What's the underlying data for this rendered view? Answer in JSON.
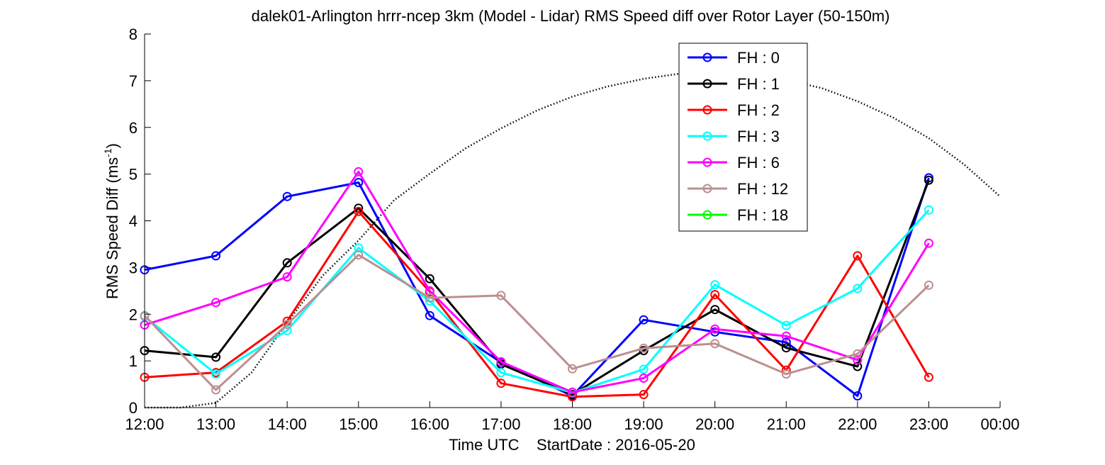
{
  "chart_data": {
    "type": "line",
    "title": "dalek01-Arlington hrrr-ncep 3km (Model - Lidar) RMS Speed diff over Rotor Layer (50-150m)",
    "xlabel": "Time UTC    StartDate : 2016-05-20",
    "ylabel_main": "RMS Speed Diff (ms",
    "ylabel_sup": "-1",
    "ylabel_close": ")",
    "ylim": [
      0,
      8
    ],
    "xlim": [
      0,
      12
    ],
    "grid": false,
    "legend_position": "top-right",
    "x_tick_labels": [
      "12:00",
      "13:00",
      "14:00",
      "15:00",
      "16:00",
      "17:00",
      "18:00",
      "19:00",
      "20:00",
      "21:00",
      "22:00",
      "23:00",
      "00:00"
    ],
    "y_tick_labels": [
      "0",
      "1",
      "2",
      "3",
      "4",
      "5",
      "6",
      "7",
      "8"
    ],
    "series": [
      {
        "name": "FH : 0",
        "color": "#0000ff",
        "values": [
          2.95,
          3.25,
          4.52,
          4.82,
          1.97,
          0.97,
          0.25,
          1.88,
          1.62,
          1.4,
          0.25,
          4.92
        ]
      },
      {
        "name": "FH : 1",
        "color": "#000000",
        "values": [
          1.22,
          1.08,
          3.1,
          4.27,
          2.76,
          0.93,
          0.28,
          1.22,
          2.1,
          1.28,
          0.88,
          4.87
        ]
      },
      {
        "name": "FH : 2",
        "color": "#ff0000",
        "values": [
          0.65,
          0.75,
          1.85,
          4.2,
          2.48,
          0.52,
          0.23,
          0.28,
          2.42,
          0.8,
          3.25,
          0.65
        ]
      },
      {
        "name": "FH : 3",
        "color": "#00ffff",
        "values": [
          1.95,
          0.72,
          1.65,
          3.42,
          2.28,
          0.75,
          0.32,
          0.82,
          2.63,
          1.76,
          2.55,
          4.23
        ]
      },
      {
        "name": "FH : 6",
        "color": "#ff00ff",
        "values": [
          1.77,
          2.25,
          2.8,
          5.05,
          2.5,
          0.98,
          0.33,
          0.63,
          1.68,
          1.53,
          1.02,
          3.52
        ]
      },
      {
        "name": "FH : 12",
        "color": "#bc8f8f",
        "values": [
          1.97,
          0.38,
          1.78,
          3.27,
          2.35,
          2.4,
          0.83,
          1.27,
          1.37,
          0.72,
          1.15,
          2.62
        ]
      },
      {
        "name": "FH : 18",
        "color": "#00ff00",
        "values": []
      }
    ],
    "reference_curve": {
      "style": "dotted",
      "color": "#000000",
      "x": [
        0.0,
        0.5,
        1.0,
        1.5,
        2.0,
        2.5,
        3.0,
        3.5,
        4.0,
        4.5,
        5.0,
        5.5,
        6.0,
        6.5,
        7.0,
        7.5,
        8.0,
        8.5,
        9.0,
        9.5,
        10.0,
        10.5,
        11.0,
        11.5,
        12.0
      ],
      "y": [
        0.0,
        0.0,
        0.1,
        0.75,
        1.82,
        2.83,
        3.58,
        4.44,
        5.01,
        5.55,
        5.98,
        6.36,
        6.66,
        6.88,
        7.04,
        7.15,
        7.19,
        7.14,
        7.02,
        6.84,
        6.56,
        6.21,
        5.77,
        5.2,
        4.52
      ]
    }
  }
}
